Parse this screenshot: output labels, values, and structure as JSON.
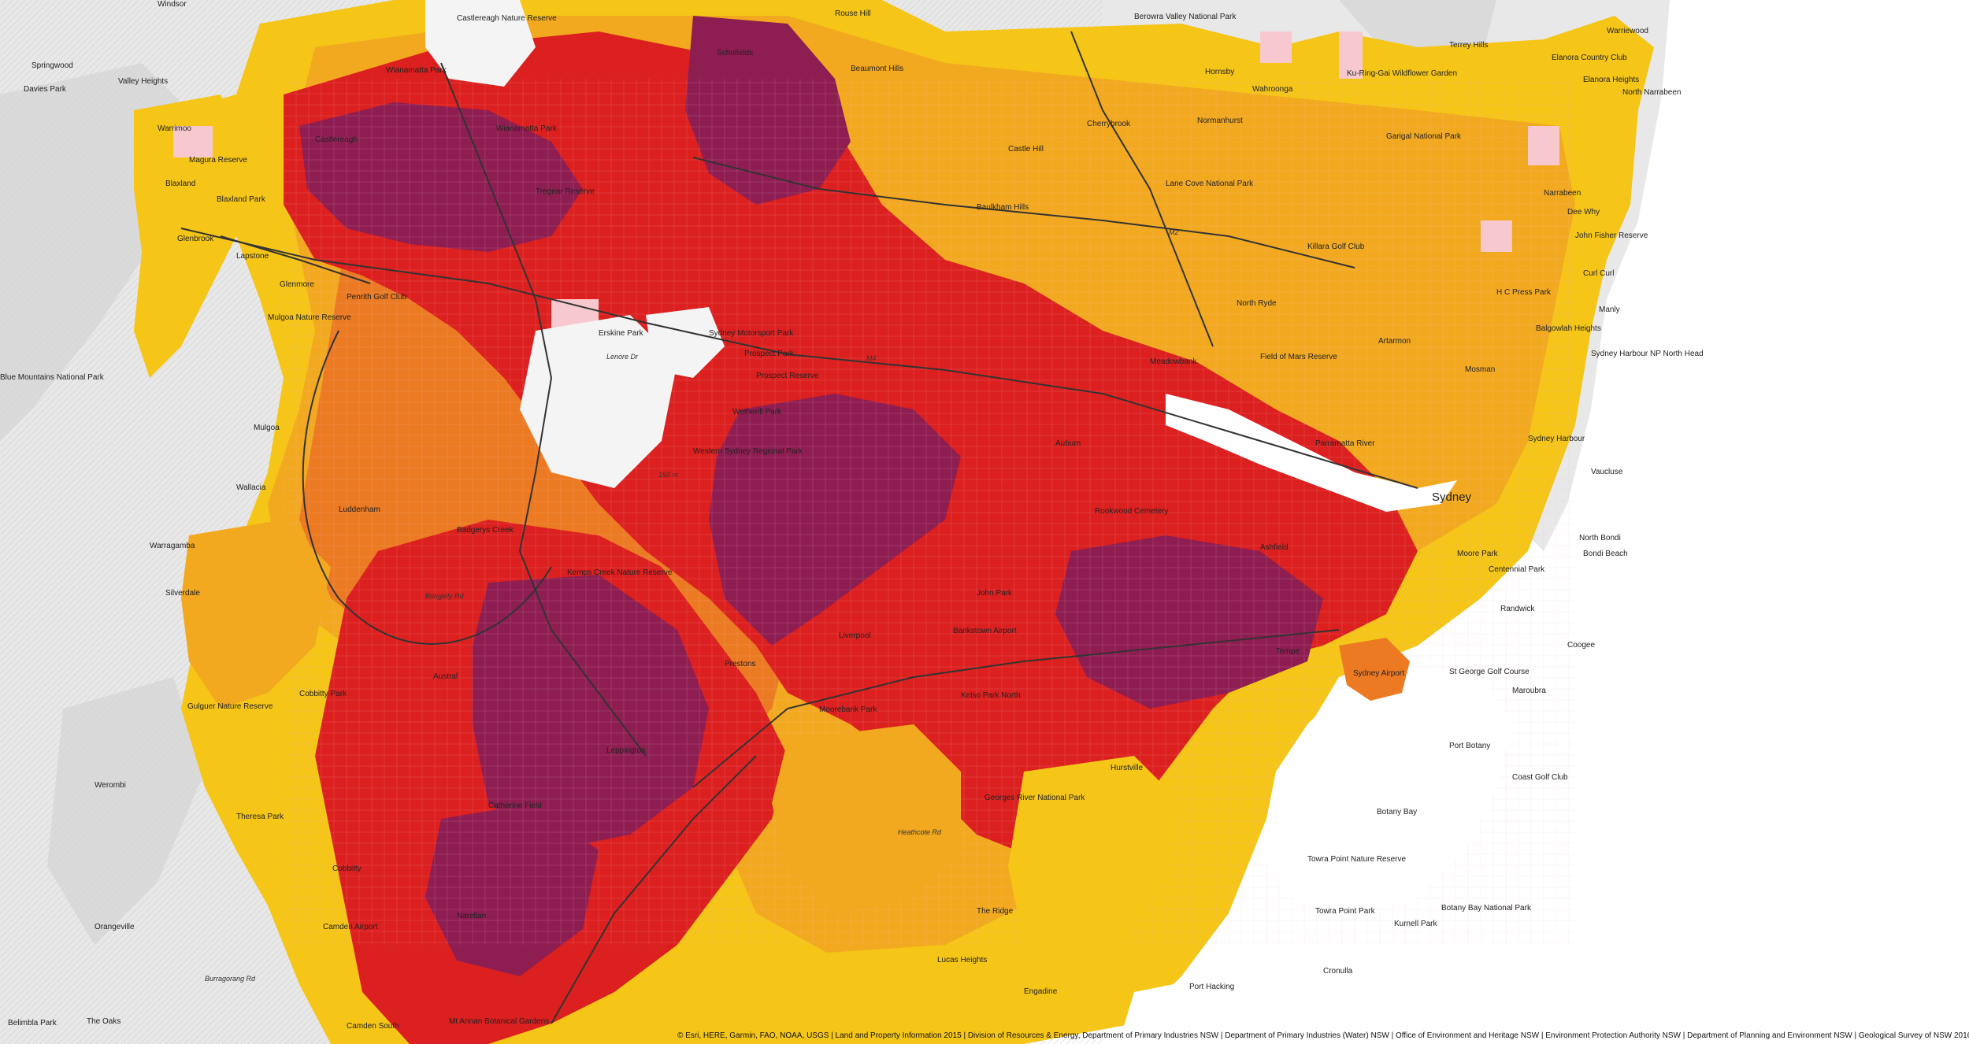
{
  "map": {
    "colors": {
      "ocean": "#ffffff",
      "terrain": "#e9e9e9",
      "hillshade": "#d6d6d6",
      "very_low": "#f7c9cf",
      "low": "#f5c518",
      "low_moderate": "#f2a91f",
      "moderate": "#ec7a22",
      "high": "#dc1f1f",
      "very_high": "#8e1d52",
      "road": "#333333"
    },
    "labels": [
      {
        "key": "windsor",
        "text": "Windsor"
      },
      {
        "key": "castlereagh_nr",
        "text": "Castlereagh Nature Reserve"
      },
      {
        "key": "springwood",
        "text": "Springwood"
      },
      {
        "key": "valley_heights",
        "text": "Valley Heights"
      },
      {
        "key": "davies_park",
        "text": "Davies Park"
      },
      {
        "key": "wianamatta_park",
        "text": "Wianamatta Park"
      },
      {
        "key": "schofields",
        "text": "Schofields"
      },
      {
        "key": "rouse_hill",
        "text": "Rouse Hill"
      },
      {
        "key": "beaumont_hills",
        "text": "Beaumont Hills"
      },
      {
        "key": "berowra_valley",
        "text": "Berowra Valley National Park"
      },
      {
        "key": "terrey_hills",
        "text": "Terrey Hills"
      },
      {
        "key": "elanora_cc",
        "text": "Elanora Country Club"
      },
      {
        "key": "elanora_heights",
        "text": "Elanora Heights"
      },
      {
        "key": "warriewood",
        "text": "Warriewood"
      },
      {
        "key": "north_narrabeen",
        "text": "North Narrabeen"
      },
      {
        "key": "warrimoo",
        "text": "Warrimoo"
      },
      {
        "key": "magura_reserve",
        "text": "Magura Reserve"
      },
      {
        "key": "blaxland",
        "text": "Blaxland"
      },
      {
        "key": "blaxland_park",
        "text": "Blaxland Park"
      },
      {
        "key": "glenbrook",
        "text": "Glenbrook"
      },
      {
        "key": "castlereagh",
        "text": "Castlereagh"
      },
      {
        "key": "wianamatta_park2",
        "text": "Wianamatta Park"
      },
      {
        "key": "tregear_reserve",
        "text": "Tregear Reserve"
      },
      {
        "key": "hornsby",
        "text": "Hornsby"
      },
      {
        "key": "wahroonga",
        "text": "Wahroonga"
      },
      {
        "key": "ku_ring_gai",
        "text": "Ku-Ring-Gai Wildflower Garden"
      },
      {
        "key": "garigal",
        "text": "Garigal National Park"
      },
      {
        "key": "normanhurst",
        "text": "Normanhurst"
      },
      {
        "key": "cherrybrook",
        "text": "Cherrybrook"
      },
      {
        "key": "castle_hill",
        "text": "Castle Hill"
      },
      {
        "key": "baulkham_hills",
        "text": "Baulkham Hills"
      },
      {
        "key": "lane_cove_np",
        "text": "Lane Cove National Park"
      },
      {
        "key": "killara_gc",
        "text": "Killara Golf Club"
      },
      {
        "key": "narrabeen",
        "text": "Narrabeen"
      },
      {
        "key": "dee_why",
        "text": "Dee Why"
      },
      {
        "key": "john_fisher",
        "text": "John Fisher Reserve"
      },
      {
        "key": "curl_curl",
        "text": "Curl Curl"
      },
      {
        "key": "manly",
        "text": "Manly"
      },
      {
        "key": "hc_press_park",
        "text": "H C Press Park"
      },
      {
        "key": "balgowlah",
        "text": "Balgowlah Heights"
      },
      {
        "key": "sydney_harbour_np",
        "text": "Sydney Harbour NP North Head"
      },
      {
        "key": "lapstone",
        "text": "Lapstone"
      },
      {
        "key": "glenmore",
        "text": "Glenmore"
      },
      {
        "key": "penrith_gc",
        "text": "Penrith Golf Club"
      },
      {
        "key": "mulgoa_reserve",
        "text": "Mulgoa Nature Reserve"
      },
      {
        "key": "erskine_park",
        "text": "Erskine Park"
      },
      {
        "key": "sydney_motorsport",
        "text": "Sydney Motorsport Park"
      },
      {
        "key": "prospect_park",
        "text": "Prospect Park"
      },
      {
        "key": "prospect_reserve",
        "text": "Prospect Reserve"
      },
      {
        "key": "lenore_dr",
        "text": "Lenore Dr"
      },
      {
        "key": "blue_mountains",
        "text": "Blue Mountains National Park"
      },
      {
        "key": "north_ryde",
        "text": "North Ryde"
      },
      {
        "key": "meadowbank",
        "text": "Meadowbank"
      },
      {
        "key": "field_of_mars",
        "text": "Field of Mars Reserve"
      },
      {
        "key": "artarmon",
        "text": "Artarmon"
      },
      {
        "key": "mosman",
        "text": "Mosman"
      },
      {
        "key": "parramatta_river",
        "text": "Parramatta River"
      },
      {
        "key": "sydney_harbour",
        "text": "Sydney Harbour"
      },
      {
        "key": "vaucluse",
        "text": "Vaucluse"
      },
      {
        "key": "sydney",
        "text": "Sydney"
      },
      {
        "key": "wetherill_park",
        "text": "Wetherill Park"
      },
      {
        "key": "mulgoa",
        "text": "Mulgoa"
      },
      {
        "key": "wallacia",
        "text": "Wallacia"
      },
      {
        "key": "luddenham",
        "text": "Luddenham"
      },
      {
        "key": "badgerys_creek",
        "text": "Badgerys Creek"
      },
      {
        "key": "western_sydney_park",
        "text": "Western Sydney Regional Park"
      },
      {
        "key": "auburn",
        "text": "Auburn"
      },
      {
        "key": "rookwood",
        "text": "Rookwood Cemetery"
      },
      {
        "key": "ashfield",
        "text": "Ashfield"
      },
      {
        "key": "moore_park",
        "text": "Moore Park"
      },
      {
        "key": "centennial",
        "text": "Centennial Park"
      },
      {
        "key": "north_bondi",
        "text": "North Bondi"
      },
      {
        "key": "bondi_beach",
        "text": "Bondi Beach"
      },
      {
        "key": "randwick",
        "text": "Randwick"
      },
      {
        "key": "warragamba",
        "text": "Warragamba"
      },
      {
        "key": "silverdale",
        "text": "Silverdale"
      },
      {
        "key": "kemps_creek",
        "text": "Kemps Creek Nature Reserve"
      },
      {
        "key": "bankstown_airport",
        "text": "Bankstown Airport"
      },
      {
        "key": "liverpool",
        "text": "Liverpool"
      },
      {
        "key": "prestons",
        "text": "Prestons"
      },
      {
        "key": "john_park",
        "text": "John Park"
      },
      {
        "key": "tempe",
        "text": "Tempe"
      },
      {
        "key": "sydney_airport",
        "text": "Sydney Airport"
      },
      {
        "key": "st_george_gc",
        "text": "St George Golf Course"
      },
      {
        "key": "maroubra",
        "text": "Maroubra"
      },
      {
        "key": "coogee",
        "text": "Coogee"
      },
      {
        "key": "cobbity_park",
        "text": "Cobbitty Park"
      },
      {
        "key": "gulguer",
        "text": "Gulguer Nature Reserve"
      },
      {
        "key": "austral",
        "text": "Austral"
      },
      {
        "key": "moorebank_park",
        "text": "Moorebank Park"
      },
      {
        "key": "kelso_park",
        "text": "Kelso Park North"
      },
      {
        "key": "port_botany",
        "text": "Port Botany"
      },
      {
        "key": "coast_gc",
        "text": "Coast Golf Club"
      },
      {
        "key": "leppington",
        "text": "Leppington"
      },
      {
        "key": "werombi",
        "text": "Werombi"
      },
      {
        "key": "theresa_park",
        "text": "Theresa Park"
      },
      {
        "key": "catherine_field",
        "text": "Catherine Field"
      },
      {
        "key": "georges_river_np",
        "text": "Georges River National Park"
      },
      {
        "key": "hurstville",
        "text": "Hurstville"
      },
      {
        "key": "botany_bay",
        "text": "Botany Bay"
      },
      {
        "key": "cobbitty",
        "text": "Cobbitty"
      },
      {
        "key": "orangeville",
        "text": "Orangeville"
      },
      {
        "key": "camden_airport",
        "text": "Camden Airport"
      },
      {
        "key": "narellan",
        "text": "Narellan"
      },
      {
        "key": "the_ridge",
        "text": "The Ridge"
      },
      {
        "key": "lucas_heights",
        "text": "Lucas Heights"
      },
      {
        "key": "towra_point",
        "text": "Towra Point Nature Reserve"
      },
      {
        "key": "towra_point_park",
        "text": "Towra Point Park"
      },
      {
        "key": "kurnell_park",
        "text": "Kurnell Park"
      },
      {
        "key": "botany_bay_np",
        "text": "Botany Bay National Park"
      },
      {
        "key": "port_hacking",
        "text": "Port Hacking"
      },
      {
        "key": "cronulla",
        "text": "Cronulla"
      },
      {
        "key": "engadine",
        "text": "Engadine"
      },
      {
        "key": "belimbla_park",
        "text": "Belimbla Park"
      },
      {
        "key": "the_oaks",
        "text": "The Oaks"
      },
      {
        "key": "camden_south",
        "text": "Camden South"
      },
      {
        "key": "mt_annan",
        "text": "Mt Annan Botanical Gardens"
      },
      {
        "key": "bringelly_rd",
        "text": "Bringelly Rd"
      },
      {
        "key": "burragorang_rd",
        "text": "Burragorang Rd"
      },
      {
        "key": "heathcote_rd",
        "text": "Heathcote Rd"
      },
      {
        "key": "m2",
        "text": "M2"
      },
      {
        "key": "m4",
        "text": "M4"
      },
      {
        "key": "feet_150",
        "text": "150 m"
      }
    ],
    "attribution": "© Esri, HERE, Garmin, FAO, NOAA, USGS | Land and Property Information 2015 | Division of Resources & Energy, Department of Primary Industries NSW | Department of Primary Industries (Water) NSW | Office of Environment and Heritage NSW | Environment Protection Authority NSW | Department of Planning and Environment NSW | Geological Survey of NSW 2016"
  }
}
